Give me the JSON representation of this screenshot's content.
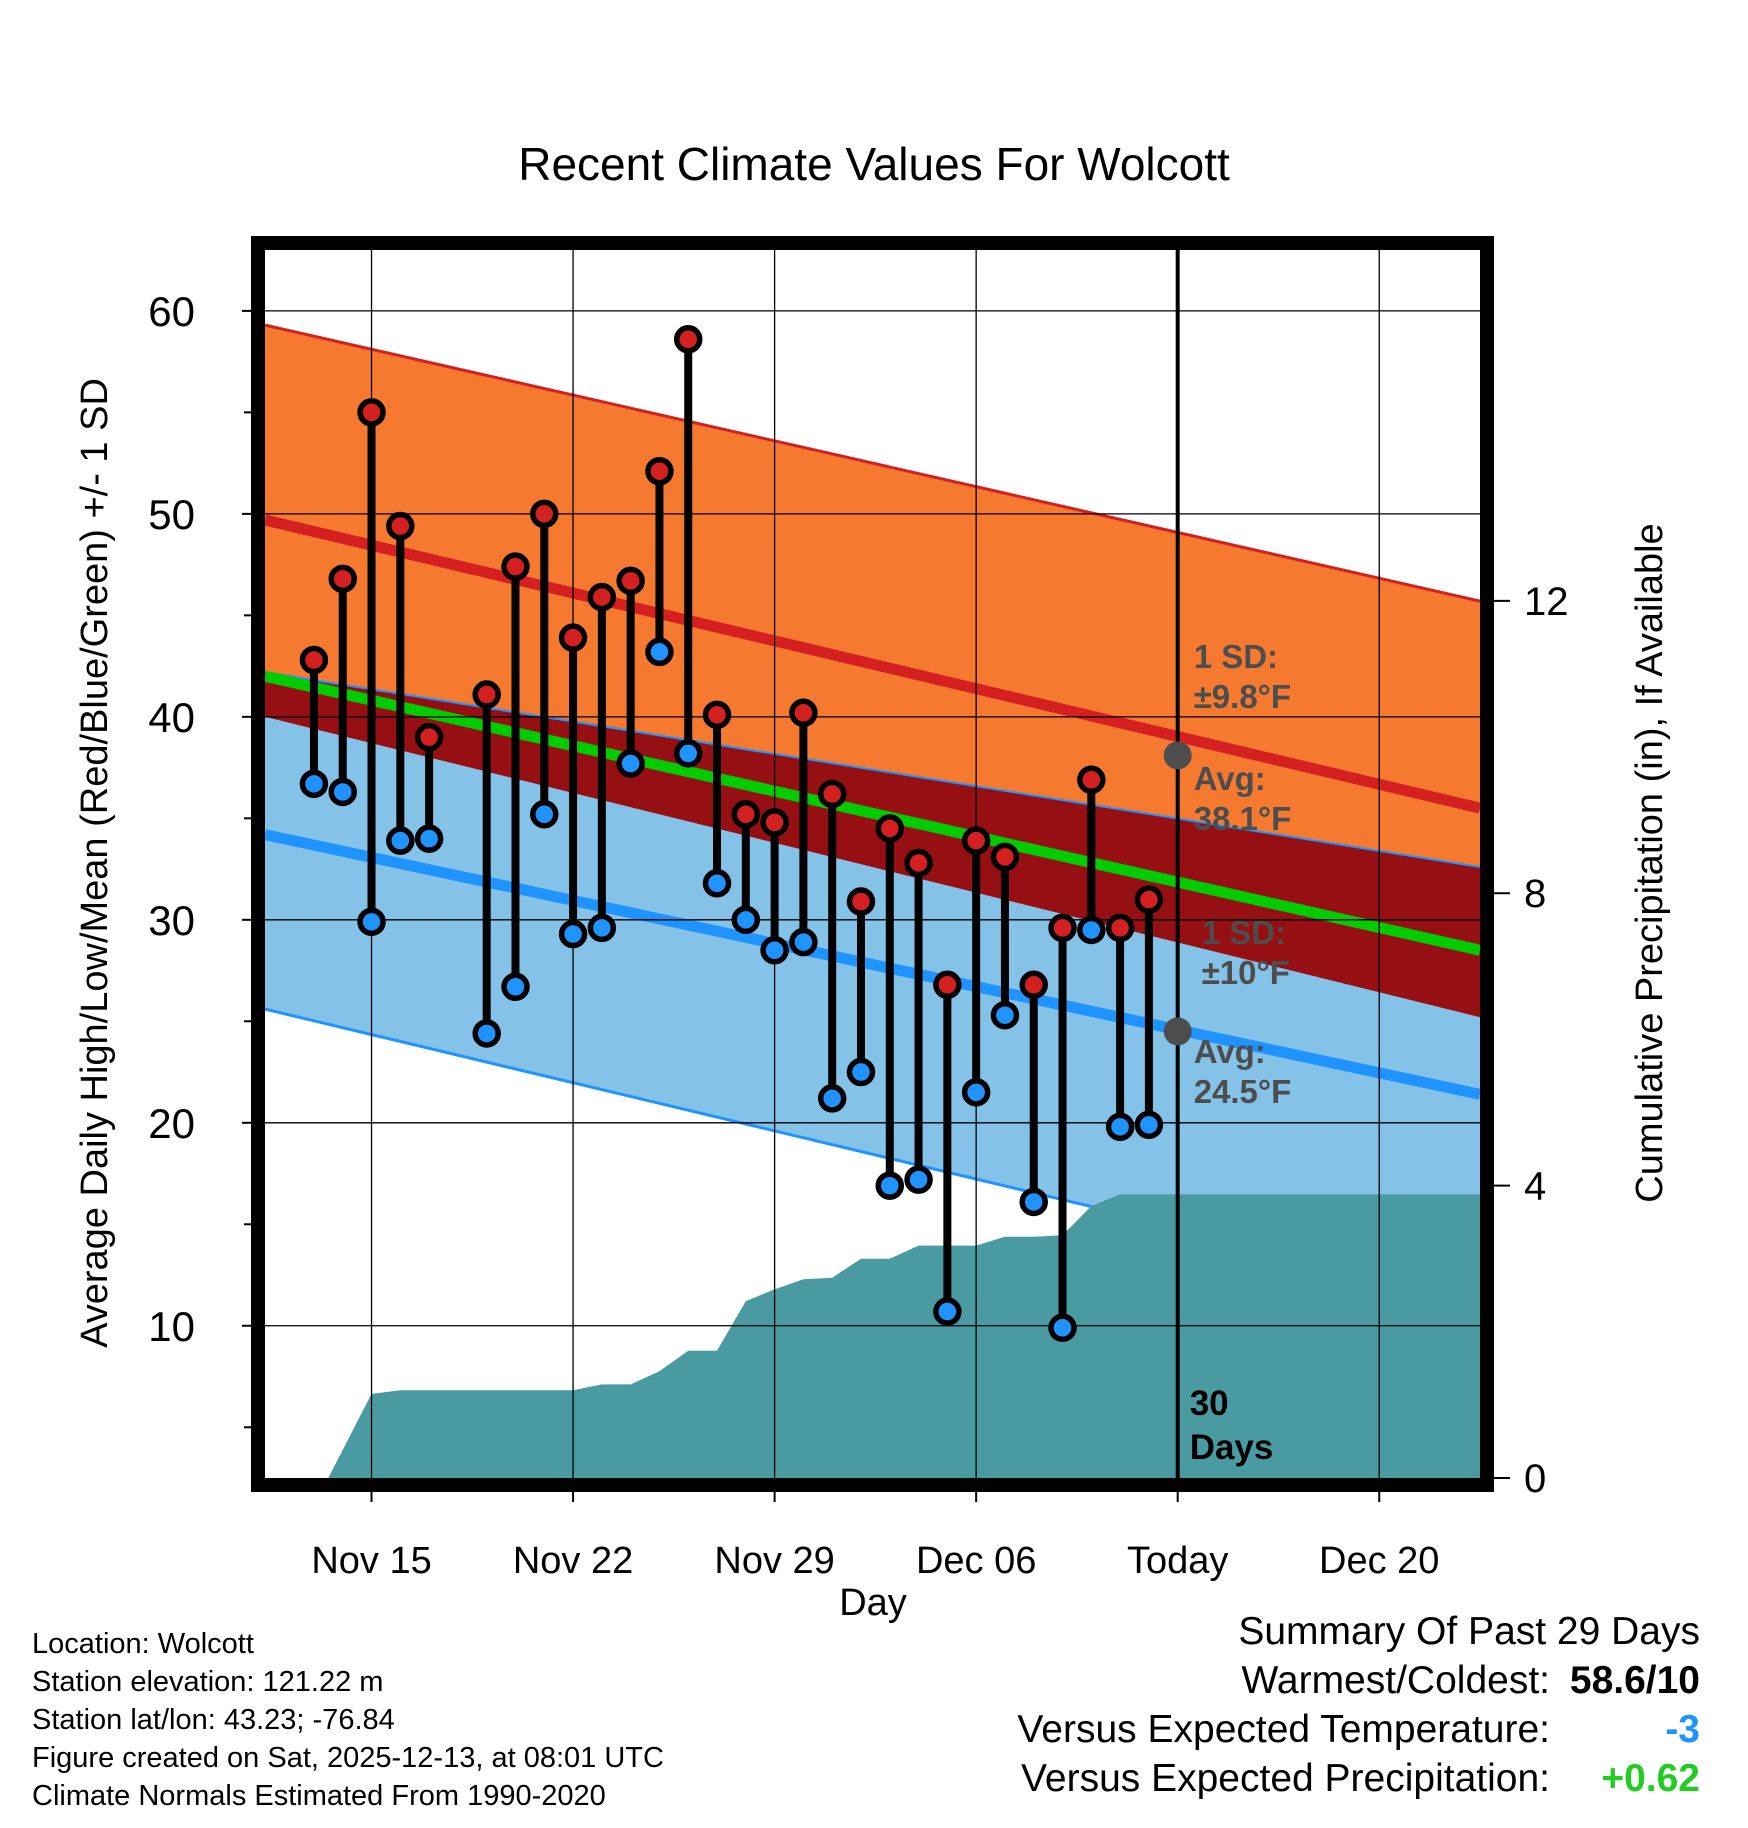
{
  "chart_data": {
    "type": "line",
    "title": "Recent Climate Values For Wolcott",
    "xlabel": "Day",
    "ylabel": "Average Daily High/Low/Mean (Red/Blue/Green) +/- 1 SD",
    "y2label": "Cumulative Precipitation (in), If Available",
    "x_ticks": [
      "Nov 15",
      "Nov 22",
      "Nov 29",
      "Dec 06",
      "Today",
      "Dec 20"
    ],
    "x_tick_days": [
      3,
      10,
      17,
      24,
      31,
      38
    ],
    "xlim": [
      -0.7,
      41.5
    ],
    "ylim": [
      2.5,
      63
    ],
    "y_ticks": [
      10,
      20,
      30,
      40,
      50,
      60
    ],
    "y2lim": [
      0,
      16.8
    ],
    "y2_ticks": [
      0,
      4,
      8,
      12
    ],
    "today_day": 31,
    "today_label": "30 Days",
    "normals_days": [
      -0.7,
      41.5
    ],
    "normal_high": {
      "avg": [
        49.7,
        35.5
      ],
      "upper": [
        59.3,
        45.7
      ],
      "lower": [
        40.0,
        25.2
      ]
    },
    "normal_low": {
      "avg": [
        34.2,
        21.4
      ],
      "upper": [
        42.2,
        32.6
      ],
      "lower": [
        25.6,
        11.3
      ]
    },
    "normal_mean": [
      42.0,
      28.5
    ],
    "annotations": {
      "high_sd": "1 SD:\n±9.8°F",
      "high_avg": "Avg:\n38.1°F",
      "low_sd": "1 SD:\n±10°F",
      "low_avg": "Avg:\n24.5°F",
      "high_avg_value": 38.1,
      "low_avg_value": 24.5
    },
    "daily": {
      "days": [
        1,
        2,
        3,
        4,
        5,
        7,
        8,
        9,
        10,
        11,
        12,
        13,
        14,
        15,
        16,
        17,
        18,
        19,
        20,
        21,
        22,
        23,
        24,
        25,
        26,
        27,
        28,
        29,
        30
      ],
      "highs": [
        42.8,
        46.8,
        55.0,
        49.4,
        39.0,
        41.1,
        47.4,
        50.0,
        43.9,
        45.9,
        46.7,
        52.1,
        58.6,
        40.1,
        35.2,
        34.8,
        40.2,
        36.2,
        30.9,
        34.5,
        32.8,
        26.8,
        33.9,
        33.1,
        26.8,
        29.6,
        36.9,
        29.6,
        31.0
      ],
      "lows": [
        36.7,
        36.3,
        29.9,
        33.9,
        34.0,
        24.4,
        26.7,
        35.2,
        29.3,
        29.6,
        37.7,
        43.2,
        38.2,
        31.8,
        30.0,
        28.5,
        28.9,
        21.2,
        22.5,
        16.9,
        17.2,
        10.7,
        21.5,
        25.3,
        16.1,
        9.9,
        29.5,
        19.8,
        19.9
      ]
    },
    "precip": {
      "x": [
        -0.7,
        1.5,
        3.0,
        4.0,
        10.0,
        11.0,
        12.0,
        13.0,
        14.0,
        15.0,
        16.0,
        17.0,
        18.0,
        19.0,
        20.0,
        21.0,
        22.0,
        23.0,
        24.0,
        25.0,
        26.0,
        27.0,
        28.0,
        29.0,
        41.5
      ],
      "y": [
        0.0,
        0.0,
        1.15,
        1.2,
        1.2,
        1.28,
        1.28,
        1.46,
        1.74,
        1.74,
        2.42,
        2.58,
        2.72,
        2.74,
        3.0,
        3.0,
        3.18,
        3.18,
        3.18,
        3.3,
        3.3,
        3.32,
        3.72,
        3.88,
        3.88
      ]
    }
  },
  "info": {
    "location": "Location: Wolcott",
    "elevation": "Station elevation: 121.22 m",
    "latlon": "Station lat/lon: 43.23; -76.84",
    "created": "Figure created on Sat, 2025-12-13, at 08:01 UTC",
    "normals": "Climate Normals Estimated From 1990-2020"
  },
  "summary": {
    "title": "Summary Of Past 29 Days",
    "warmest_label": "Warmest/Coldest:",
    "warmest_value": "58.6/10",
    "temp_label": "Versus Expected Temperature:",
    "temp_value": "-3",
    "precip_label": "Versus Expected Precipitation:",
    "precip_value": "+0.62"
  },
  "colors": {
    "high_band": "#f57a30",
    "high_line": "#d42020",
    "overlap_band": "#950f13",
    "low_band": "#85c2e8",
    "low_line": "#1f93ff",
    "mean_line": "#00cc00",
    "precip_fill": "#4a9aa2",
    "annotation": "#4d4d4d",
    "temp_value": "#1f93ff",
    "precip_value": "#22cc22"
  }
}
